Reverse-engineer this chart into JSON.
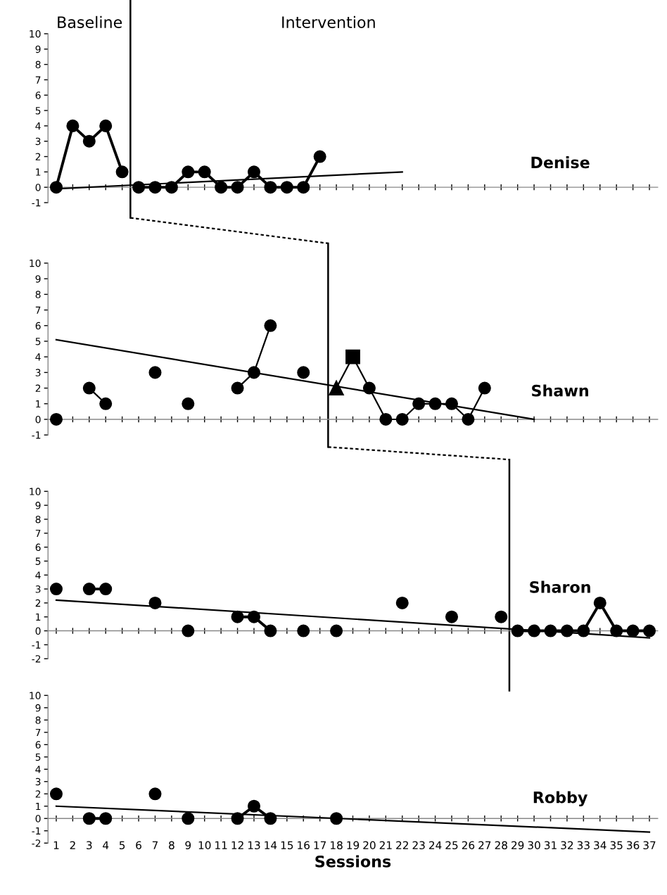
{
  "chart_data": [
    {
      "type": "line",
      "title": "Denise",
      "annotations": [
        "Baseline",
        "Intervention"
      ],
      "xlim": [
        0.5,
        37.5
      ],
      "ylim": [
        -1,
        10
      ],
      "xticks": [
        1,
        2,
        3,
        4,
        5,
        6,
        7,
        8,
        9,
        10,
        11,
        12,
        13,
        14,
        15,
        16,
        17,
        18,
        19,
        20,
        21,
        22,
        23,
        24,
        25,
        26,
        27,
        28,
        29,
        30,
        31,
        32,
        33,
        34,
        35,
        36,
        37
      ],
      "yticks": [
        -1,
        0,
        1,
        2,
        3,
        4,
        5,
        6,
        7,
        8,
        9,
        10
      ],
      "tick_labels": "y",
      "ref_lines": [
        {
          "axis": "x",
          "value": 5.5,
          "color": "#000000"
        }
      ],
      "series": [
        {
          "color": "#000000",
          "marker": "circle",
          "x": [
            1,
            2,
            3,
            4,
            5
          ],
          "values": [
            0,
            4,
            3,
            4,
            1
          ]
        },
        {
          "color": "#000000",
          "marker": "circle",
          "x": [
            6,
            7,
            8,
            9,
            10,
            11,
            12,
            13,
            14,
            15,
            16,
            17
          ],
          "values": [
            0,
            0,
            0,
            1,
            1,
            0,
            0,
            1,
            0,
            0,
            0,
            2
          ]
        },
        {
          "color": "#000000",
          "marker": "none",
          "x": [
            1,
            22
          ],
          "values": [
            -0.1,
            1.0
          ]
        }
      ]
    },
    {
      "type": "line",
      "title": "Shawn",
      "xlim": [
        0.5,
        37.5
      ],
      "ylim": [
        -1,
        10
      ],
      "xticks": [
        1,
        2,
        3,
        4,
        5,
        6,
        7,
        8,
        9,
        10,
        11,
        12,
        13,
        14,
        15,
        16,
        17,
        18,
        19,
        20,
        21,
        22,
        23,
        24,
        25,
        26,
        27,
        28,
        29,
        30,
        31,
        32,
        33,
        34,
        35,
        36,
        37
      ],
      "yticks": [
        -1,
        0,
        1,
        2,
        3,
        4,
        5,
        6,
        7,
        8,
        9,
        10
      ],
      "tick_labels": "y",
      "ref_lines": [
        {
          "axis": "x",
          "value": 17.5,
          "color": "#000000"
        }
      ],
      "series": [
        {
          "color": "#000000",
          "marker": "none",
          "x": [
            3,
            4,
            5,
            12,
            13,
            14,
            15,
            18,
            19,
            20,
            21,
            22,
            23,
            24,
            25,
            26,
            27
          ],
          "values": [
            2,
            1,
            null,
            2,
            3,
            6,
            null,
            2,
            4,
            2,
            0,
            0,
            1,
            1,
            1,
            0,
            2
          ]
        },
        {
          "type": "scatter",
          "color": "#000000",
          "marker": "circle",
          "x": [
            1,
            3,
            4,
            7,
            9,
            12,
            13,
            14,
            16,
            20,
            21,
            22,
            23,
            24,
            25,
            26,
            27
          ],
          "values": [
            0,
            2,
            1,
            3,
            1,
            2,
            3,
            6,
            3,
            2,
            0,
            0,
            1,
            1,
            1,
            0,
            2
          ]
        },
        {
          "type": "scatter",
          "color": "#000000",
          "marker": "triangle",
          "x": [
            18
          ],
          "values": [
            2
          ]
        },
        {
          "type": "scatter",
          "color": "#000000",
          "marker": "square",
          "x": [
            19
          ],
          "values": [
            4
          ]
        },
        {
          "color": "#000000",
          "marker": "none",
          "x": [
            1,
            30
          ],
          "values": [
            5.1,
            0
          ]
        }
      ]
    },
    {
      "type": "line",
      "title": "Sharon",
      "xlim": [
        0.5,
        37.5
      ],
      "ylim": [
        -2,
        10
      ],
      "xticks": [
        1,
        2,
        3,
        4,
        5,
        6,
        7,
        8,
        9,
        10,
        11,
        12,
        13,
        14,
        15,
        16,
        17,
        18,
        19,
        20,
        21,
        22,
        23,
        24,
        25,
        26,
        27,
        28,
        29,
        30,
        31,
        32,
        33,
        34,
        35,
        36,
        37
      ],
      "yticks": [
        -2,
        -1,
        0,
        1,
        2,
        3,
        4,
        5,
        6,
        7,
        8,
        9,
        10
      ],
      "tick_labels": "y",
      "ref_lines": [
        {
          "axis": "x",
          "value": 28.5,
          "color": "#000000"
        }
      ],
      "series": [
        {
          "color": "#000000",
          "marker": "circle",
          "x": [
            1,
            2,
            3,
            4,
            5,
            6,
            7,
            8,
            9,
            10,
            11,
            12,
            13,
            14,
            15,
            16,
            17,
            18,
            19,
            20,
            21,
            22,
            23,
            24,
            25,
            26,
            27,
            28
          ],
          "values": [
            3,
            null,
            3,
            3,
            null,
            null,
            2,
            null,
            0,
            null,
            null,
            1,
            1,
            0,
            null,
            0,
            null,
            0,
            null,
            null,
            null,
            2,
            null,
            null,
            1,
            null,
            null,
            1
          ]
        },
        {
          "color": "#000000",
          "marker": "circle",
          "x": [
            29,
            30,
            31,
            32,
            33,
            34,
            35,
            36,
            37
          ],
          "values": [
            0,
            0,
            0,
            0,
            0,
            2,
            0,
            0,
            0
          ]
        },
        {
          "color": "#000000",
          "marker": "none",
          "x": [
            1,
            37
          ],
          "values": [
            2.2,
            -0.5
          ]
        }
      ]
    },
    {
      "type": "line",
      "title": "Robby",
      "xlabel": "Sessions",
      "xlim": [
        0.5,
        37.5
      ],
      "ylim": [
        -2,
        10
      ],
      "xticks": [
        1,
        2,
        3,
        4,
        5,
        6,
        7,
        8,
        9,
        10,
        11,
        12,
        13,
        14,
        15,
        16,
        17,
        18,
        19,
        20,
        21,
        22,
        23,
        24,
        25,
        26,
        27,
        28,
        29,
        30,
        31,
        32,
        33,
        34,
        35,
        36,
        37
      ],
      "yticks": [
        -2,
        -1,
        0,
        1,
        2,
        3,
        4,
        5,
        6,
        7,
        8,
        9,
        10
      ],
      "series": [
        {
          "color": "#000000",
          "marker": "circle",
          "x": [
            1,
            2,
            3,
            4,
            5,
            6,
            7,
            8,
            9,
            10,
            11,
            12,
            13,
            14,
            15,
            16,
            17,
            18
          ],
          "values": [
            2,
            null,
            0,
            0,
            null,
            null,
            2,
            null,
            0,
            null,
            null,
            0,
            1,
            0,
            null,
            null,
            null,
            0
          ]
        },
        {
          "color": "#000000",
          "marker": "none",
          "x": [
            1,
            37
          ],
          "values": [
            1.0,
            -1.1
          ]
        }
      ]
    }
  ]
}
